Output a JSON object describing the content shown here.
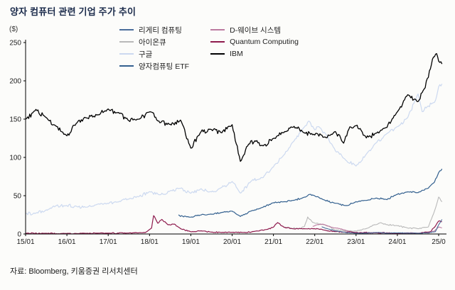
{
  "title": "양자 컴퓨터 관련 기업 주가 추이",
  "y_unit_label": "($)",
  "source": "자료: Bloomberg, 키움증권 리서치센터",
  "chart_data": {
    "type": "line",
    "title": "양자 컴퓨터 관련 기업 주가 추이",
    "xlabel": "",
    "ylabel": "($)",
    "ylim": [
      0,
      250
    ],
    "y_ticks": [
      0,
      50,
      100,
      150,
      200,
      250
    ],
    "x_range": [
      2015.0,
      2025.12
    ],
    "x_ticks": [
      {
        "x": 2015,
        "label": "15/01"
      },
      {
        "x": 2016,
        "label": "16/01"
      },
      {
        "x": 2017,
        "label": "17/01"
      },
      {
        "x": 2018,
        "label": "18/01"
      },
      {
        "x": 2019,
        "label": "19/01"
      },
      {
        "x": 2020,
        "label": "20/01"
      },
      {
        "x": 2021,
        "label": "21/01"
      },
      {
        "x": 2022,
        "label": "22/01"
      },
      {
        "x": 2023,
        "label": "23/01"
      },
      {
        "x": 2024,
        "label": "24/01"
      },
      {
        "x": 2025,
        "label": "25/0"
      }
    ],
    "grid": false,
    "legend_position": "top",
    "draw_order": [
      2,
      1,
      4,
      5,
      0,
      3,
      6
    ],
    "series": [
      {
        "name": "리게티 컴퓨팅",
        "color": "#4a6d9b",
        "width": 1.1,
        "jitter": 0.5,
        "points": [
          [
            2022.17,
            9.5
          ],
          [
            2022.3,
            7
          ],
          [
            2022.5,
            4
          ],
          [
            2022.75,
            2
          ],
          [
            2023.0,
            1
          ],
          [
            2023.25,
            1.2
          ],
          [
            2023.5,
            2
          ],
          [
            2023.75,
            1
          ],
          [
            2024.0,
            1.5
          ],
          [
            2024.25,
            1.2
          ],
          [
            2024.5,
            1
          ],
          [
            2024.75,
            1.5
          ],
          [
            2024.92,
            3
          ],
          [
            2025.0,
            12
          ],
          [
            2025.08,
            19
          ]
        ]
      },
      {
        "name": "아이온큐",
        "color": "#b9b9b9",
        "width": 1.1,
        "jitter": 1.0,
        "points": [
          [
            2021.25,
            9
          ],
          [
            2021.4,
            8
          ],
          [
            2021.6,
            7
          ],
          [
            2021.75,
            10
          ],
          [
            2021.83,
            22
          ],
          [
            2021.92,
            17
          ],
          [
            2022.0,
            14
          ],
          [
            2022.25,
            12
          ],
          [
            2022.5,
            5
          ],
          [
            2022.75,
            4
          ],
          [
            2023.0,
            4
          ],
          [
            2023.25,
            7
          ],
          [
            2023.6,
            15
          ],
          [
            2023.75,
            12
          ],
          [
            2024.0,
            11
          ],
          [
            2024.25,
            8
          ],
          [
            2024.5,
            7
          ],
          [
            2024.75,
            9
          ],
          [
            2024.9,
            30
          ],
          [
            2025.0,
            48
          ],
          [
            2025.08,
            42
          ]
        ]
      },
      {
        "name": "구글",
        "color": "#ccd9f0",
        "width": 1.2,
        "jitter": 2.5,
        "points": [
          [
            2015.0,
            27
          ],
          [
            2015.25,
            27
          ],
          [
            2015.5,
            31
          ],
          [
            2015.75,
            37
          ],
          [
            2016.0,
            37
          ],
          [
            2016.25,
            36
          ],
          [
            2016.5,
            35
          ],
          [
            2016.75,
            39
          ],
          [
            2017.0,
            40
          ],
          [
            2017.25,
            42
          ],
          [
            2017.5,
            46
          ],
          [
            2017.75,
            49
          ],
          [
            2018.0,
            55
          ],
          [
            2018.25,
            51
          ],
          [
            2018.5,
            56
          ],
          [
            2018.75,
            60
          ],
          [
            2019.0,
            53
          ],
          [
            2019.25,
            59
          ],
          [
            2019.5,
            55
          ],
          [
            2019.75,
            61
          ],
          [
            2020.0,
            68
          ],
          [
            2020.2,
            53
          ],
          [
            2020.5,
            71
          ],
          [
            2020.75,
            74
          ],
          [
            2021.0,
            88
          ],
          [
            2021.25,
            103
          ],
          [
            2021.5,
            122
          ],
          [
            2021.75,
            140
          ],
          [
            2021.85,
            148
          ],
          [
            2022.0,
            136
          ],
          [
            2022.1,
            140
          ],
          [
            2022.3,
            128
          ],
          [
            2022.5,
            109
          ],
          [
            2022.75,
            97
          ],
          [
            2023.0,
            89
          ],
          [
            2023.25,
            104
          ],
          [
            2023.5,
            120
          ],
          [
            2023.75,
            131
          ],
          [
            2024.0,
            140
          ],
          [
            2024.25,
            152
          ],
          [
            2024.5,
            183
          ],
          [
            2024.6,
            160
          ],
          [
            2024.75,
            167
          ],
          [
            2024.9,
            172
          ],
          [
            2025.0,
            192
          ],
          [
            2025.08,
            196
          ]
        ]
      },
      {
        "name": "양자컴퓨팅 ETF",
        "color": "#33608f",
        "width": 1.2,
        "jitter": 1.2,
        "points": [
          [
            2018.7,
            25
          ],
          [
            2018.8,
            23
          ],
          [
            2019.0,
            22
          ],
          [
            2019.25,
            25
          ],
          [
            2019.5,
            26
          ],
          [
            2019.75,
            28
          ],
          [
            2020.0,
            30
          ],
          [
            2020.2,
            23
          ],
          [
            2020.5,
            31
          ],
          [
            2020.75,
            35
          ],
          [
            2021.0,
            41
          ],
          [
            2021.25,
            42
          ],
          [
            2021.5,
            44
          ],
          [
            2021.75,
            48
          ],
          [
            2021.9,
            52
          ],
          [
            2022.0,
            50
          ],
          [
            2022.25,
            44
          ],
          [
            2022.5,
            40
          ],
          [
            2022.75,
            37
          ],
          [
            2023.0,
            42
          ],
          [
            2023.25,
            44
          ],
          [
            2023.5,
            47
          ],
          [
            2023.75,
            45
          ],
          [
            2024.0,
            52
          ],
          [
            2024.25,
            55
          ],
          [
            2024.5,
            54
          ],
          [
            2024.75,
            60
          ],
          [
            2024.9,
            68
          ],
          [
            2025.0,
            80
          ],
          [
            2025.08,
            85
          ]
        ]
      },
      {
        "name": "D-웨이브 시스템",
        "color": "#bc7aa0",
        "width": 1.1,
        "jitter": 0.5,
        "points": [
          [
            2021.95,
            10
          ],
          [
            2022.05,
            12
          ],
          [
            2022.2,
            13
          ],
          [
            2022.4,
            9
          ],
          [
            2022.6,
            7
          ],
          [
            2022.75,
            5
          ],
          [
            2023.0,
            1
          ],
          [
            2023.25,
            0.8
          ],
          [
            2023.5,
            1.5
          ],
          [
            2023.75,
            1
          ],
          [
            2024.0,
            1.2
          ],
          [
            2024.25,
            1.5
          ],
          [
            2024.5,
            1.2
          ],
          [
            2024.75,
            1.3
          ],
          [
            2024.9,
            4
          ],
          [
            2025.0,
            9
          ],
          [
            2025.08,
            8
          ]
        ]
      },
      {
        "name": "Quantum Computing",
        "color": "#8e1a4d",
        "width": 1.2,
        "jitter": 0.8,
        "points": [
          [
            2015.0,
            1
          ],
          [
            2015.5,
            0.8
          ],
          [
            2016.0,
            0.7
          ],
          [
            2016.5,
            0.8
          ],
          [
            2017.0,
            1
          ],
          [
            2017.5,
            1.2
          ],
          [
            2017.9,
            2
          ],
          [
            2018.05,
            8
          ],
          [
            2018.1,
            24
          ],
          [
            2018.2,
            14
          ],
          [
            2018.3,
            19
          ],
          [
            2018.45,
            12
          ],
          [
            2018.6,
            13
          ],
          [
            2018.75,
            7
          ],
          [
            2019.0,
            3
          ],
          [
            2019.25,
            4
          ],
          [
            2019.5,
            2.5
          ],
          [
            2019.75,
            2
          ],
          [
            2020.0,
            2.2
          ],
          [
            2020.3,
            2
          ],
          [
            2020.6,
            4
          ],
          [
            2020.85,
            6
          ],
          [
            2021.0,
            9
          ],
          [
            2021.1,
            15
          ],
          [
            2021.25,
            9
          ],
          [
            2021.5,
            6.5
          ],
          [
            2021.75,
            7
          ],
          [
            2022.0,
            7
          ],
          [
            2022.25,
            5
          ],
          [
            2022.5,
            3
          ],
          [
            2022.75,
            2.5
          ],
          [
            2023.0,
            2
          ],
          [
            2023.5,
            1.5
          ],
          [
            2024.0,
            1
          ],
          [
            2024.5,
            0.8
          ],
          [
            2024.8,
            3
          ],
          [
            2024.9,
            9
          ],
          [
            2025.0,
            17
          ],
          [
            2025.08,
            16
          ]
        ]
      },
      {
        "name": "IBM",
        "color": "#000000",
        "width": 1.3,
        "jitter": 3.5,
        "points": [
          [
            2015.0,
            150
          ],
          [
            2015.25,
            162
          ],
          [
            2015.5,
            152
          ],
          [
            2015.75,
            140
          ],
          [
            2016.0,
            128
          ],
          [
            2016.25,
            146
          ],
          [
            2016.5,
            152
          ],
          [
            2016.75,
            156
          ],
          [
            2017.0,
            163
          ],
          [
            2017.25,
            158
          ],
          [
            2017.5,
            148
          ],
          [
            2017.75,
            150
          ],
          [
            2018.0,
            160
          ],
          [
            2018.25,
            146
          ],
          [
            2018.5,
            143
          ],
          [
            2018.75,
            148
          ],
          [
            2019.0,
            112
          ],
          [
            2019.25,
            134
          ],
          [
            2019.5,
            137
          ],
          [
            2019.75,
            132
          ],
          [
            2020.0,
            142
          ],
          [
            2020.2,
            95
          ],
          [
            2020.4,
            118
          ],
          [
            2020.6,
            122
          ],
          [
            2020.75,
            115
          ],
          [
            2021.0,
            125
          ],
          [
            2021.25,
            133
          ],
          [
            2021.5,
            140
          ],
          [
            2021.75,
            132
          ],
          [
            2022.0,
            130
          ],
          [
            2022.25,
            126
          ],
          [
            2022.5,
            134
          ],
          [
            2022.7,
            118
          ],
          [
            2022.85,
            140
          ],
          [
            2023.0,
            142
          ],
          [
            2023.25,
            126
          ],
          [
            2023.5,
            132
          ],
          [
            2023.75,
            140
          ],
          [
            2024.0,
            160
          ],
          [
            2024.25,
            182
          ],
          [
            2024.5,
            172
          ],
          [
            2024.65,
            190
          ],
          [
            2024.75,
            205
          ],
          [
            2024.85,
            228
          ],
          [
            2024.95,
            235
          ],
          [
            2025.0,
            226
          ],
          [
            2025.08,
            222
          ]
        ]
      }
    ]
  }
}
